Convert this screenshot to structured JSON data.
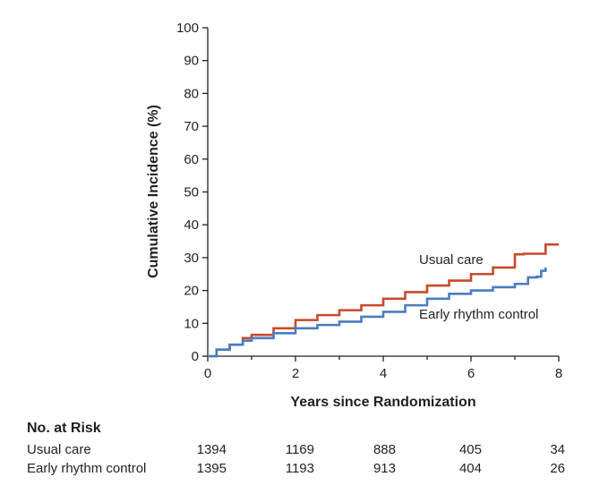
{
  "chart_data": {
    "type": "line",
    "title": "",
    "xlabel": "Years since Randomization",
    "ylabel": "Cumulative Incidence (%)",
    "xlim": [
      0,
      8
    ],
    "ylim": [
      0,
      100
    ],
    "x_ticks": [
      "0",
      "2",
      "4",
      "6",
      "8"
    ],
    "y_ticks": [
      "0",
      "10",
      "20",
      "30",
      "40",
      "50",
      "60",
      "70",
      "80",
      "90",
      "100"
    ],
    "grid": false,
    "series": [
      {
        "name": "Usual care",
        "color": "#c84a2a",
        "x": [
          0,
          0.2,
          0.5,
          0.8,
          1.0,
          1.5,
          2.0,
          2.5,
          3.0,
          3.5,
          4.0,
          4.5,
          5.0,
          5.5,
          6.0,
          6.5,
          7.0,
          7.2,
          7.6,
          7.7,
          8.0
        ],
        "y": [
          0,
          2.0,
          3.5,
          5.5,
          6.5,
          8.5,
          11.0,
          12.5,
          14.0,
          15.5,
          17.5,
          19.5,
          21.5,
          23.0,
          25.0,
          27.0,
          31.0,
          31.2,
          31.2,
          34.0,
          34.0
        ]
      },
      {
        "name": "Early rhythm control",
        "color": "#4a7cc0",
        "x": [
          0,
          0.2,
          0.5,
          0.8,
          1.0,
          1.5,
          2.0,
          2.5,
          3.0,
          3.5,
          4.0,
          4.5,
          5.0,
          5.5,
          6.0,
          6.5,
          7.0,
          7.3,
          7.5,
          7.6,
          7.7
        ],
        "y": [
          0,
          2.0,
          3.5,
          4.7,
          5.5,
          7.0,
          8.5,
          9.5,
          10.5,
          12.0,
          13.5,
          15.5,
          17.5,
          19.0,
          20.0,
          21.0,
          22.0,
          24.0,
          24.2,
          26.0,
          27.0
        ]
      }
    ],
    "annotations": [
      "Usual care",
      "Early rhythm control"
    ],
    "risk_table": {
      "title": "No. at Risk",
      "rows": [
        {
          "label": "Usual care",
          "values": [
            "1394",
            "1169",
            "888",
            "405",
            "34"
          ]
        },
        {
          "label": "Early rhythm control",
          "values": [
            "1395",
            "1193",
            "913",
            "404",
            "26"
          ]
        }
      ]
    }
  }
}
